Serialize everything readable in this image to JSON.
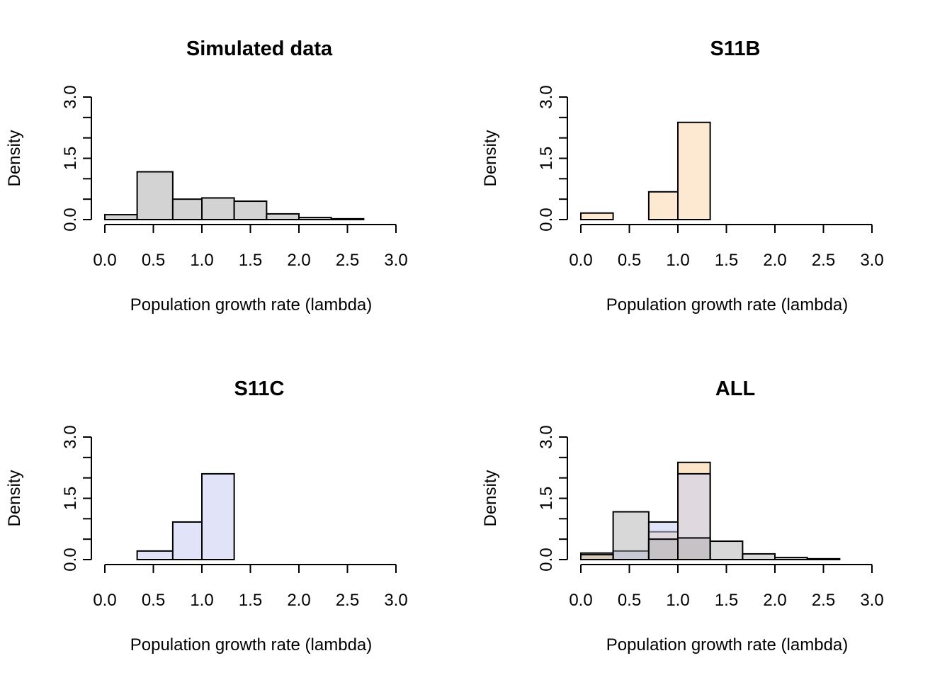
{
  "chart_data": [
    {
      "type": "bar",
      "title": "Simulated data",
      "xlabel": "Population growth rate (lambda)",
      "ylabel": "Density",
      "xlim": [
        0,
        3.0
      ],
      "ylim": [
        0,
        3.0
      ],
      "xticks": [
        "0.0",
        "0.5",
        "1.0",
        "1.5",
        "2.0",
        "2.5",
        "3.0"
      ],
      "yticks": [
        "0.0",
        "1.5",
        "3.0"
      ],
      "series": [
        {
          "fill": "#d3d3d3",
          "bins": [
            {
              "x0": 0.0,
              "x1": 0.333,
              "value": 0.12
            },
            {
              "x0": 0.333,
              "x1": 0.7,
              "value": 1.17
            },
            {
              "x0": 0.7,
              "x1": 1.0,
              "value": 0.5
            },
            {
              "x0": 1.0,
              "x1": 1.333,
              "value": 0.53
            },
            {
              "x0": 1.333,
              "x1": 1.667,
              "value": 0.45
            },
            {
              "x0": 1.667,
              "x1": 2.0,
              "value": 0.14
            },
            {
              "x0": 2.0,
              "x1": 2.333,
              "value": 0.05
            },
            {
              "x0": 2.333,
              "x1": 2.667,
              "value": 0.02
            },
            {
              "x0": 2.667,
              "x1": 3.0,
              "value": 0.0
            }
          ]
        }
      ]
    },
    {
      "type": "bar",
      "title": "S11B",
      "xlabel": "Population growth rate (lambda)",
      "ylabel": "Density",
      "xlim": [
        0,
        3.0
      ],
      "ylim": [
        0,
        3.0
      ],
      "xticks": [
        "0.0",
        "0.5",
        "1.0",
        "1.5",
        "2.0",
        "2.5",
        "3.0"
      ],
      "yticks": [
        "0.0",
        "1.5",
        "3.0"
      ],
      "series": [
        {
          "fill": "#fde9d2",
          "bins": [
            {
              "x0": 0.0,
              "x1": 0.333,
              "value": 0.16
            },
            {
              "x0": 0.333,
              "x1": 0.7,
              "value": 0.0
            },
            {
              "x0": 0.7,
              "x1": 1.0,
              "value": 0.68
            },
            {
              "x0": 1.0,
              "x1": 1.333,
              "value": 2.38
            },
            {
              "x0": 1.333,
              "x1": 1.667,
              "value": 0.0
            },
            {
              "x0": 1.667,
              "x1": 2.0,
              "value": 0.0
            },
            {
              "x0": 2.0,
              "x1": 2.333,
              "value": 0.0
            },
            {
              "x0": 2.333,
              "x1": 2.667,
              "value": 0.0
            },
            {
              "x0": 2.667,
              "x1": 3.0,
              "value": 0.0
            }
          ]
        }
      ]
    },
    {
      "type": "bar",
      "title": "S11C",
      "xlabel": "Population growth rate (lambda)",
      "ylabel": "Density",
      "xlim": [
        0,
        3.0
      ],
      "ylim": [
        0,
        3.0
      ],
      "xticks": [
        "0.0",
        "0.5",
        "1.0",
        "1.5",
        "2.0",
        "2.5",
        "3.0"
      ],
      "yticks": [
        "0.0",
        "1.5",
        "3.0"
      ],
      "series": [
        {
          "fill": "#e1e4f8",
          "bins": [
            {
              "x0": 0.0,
              "x1": 0.333,
              "value": 0.0
            },
            {
              "x0": 0.333,
              "x1": 0.7,
              "value": 0.21
            },
            {
              "x0": 0.7,
              "x1": 1.0,
              "value": 0.92
            },
            {
              "x0": 1.0,
              "x1": 1.333,
              "value": 2.1
            },
            {
              "x0": 1.333,
              "x1": 1.667,
              "value": 0.0
            },
            {
              "x0": 1.667,
              "x1": 2.0,
              "value": 0.0
            },
            {
              "x0": 2.0,
              "x1": 2.333,
              "value": 0.0
            },
            {
              "x0": 2.333,
              "x1": 2.667,
              "value": 0.0
            },
            {
              "x0": 2.667,
              "x1": 3.0,
              "value": 0.0
            }
          ]
        }
      ]
    },
    {
      "type": "bar",
      "title": "ALL",
      "xlabel": "Population growth rate (lambda)",
      "ylabel": "Density",
      "xlim": [
        0,
        3.0
      ],
      "ylim": [
        0,
        3.0
      ],
      "xticks": [
        "0.0",
        "0.5",
        "1.0",
        "1.5",
        "2.0",
        "2.5",
        "3.0"
      ],
      "yticks": [
        "0.0",
        "1.5",
        "3.0"
      ],
      "series": [
        {
          "fill": "#f9dbb6",
          "opacity": 0.75,
          "bins": [
            {
              "x0": 0.0,
              "x1": 0.333,
              "value": 0.16
            },
            {
              "x0": 0.333,
              "x1": 0.7,
              "value": 0.0
            },
            {
              "x0": 0.7,
              "x1": 1.0,
              "value": 0.68
            },
            {
              "x0": 1.0,
              "x1": 1.333,
              "value": 2.38
            },
            {
              "x0": 1.333,
              "x1": 1.667,
              "value": 0.0
            },
            {
              "x0": 1.667,
              "x1": 2.0,
              "value": 0.0
            },
            {
              "x0": 2.0,
              "x1": 2.333,
              "value": 0.0
            },
            {
              "x0": 2.333,
              "x1": 2.667,
              "value": 0.0
            },
            {
              "x0": 2.667,
              "x1": 3.0,
              "value": 0.0
            }
          ]
        },
        {
          "fill": "#c9cef2",
          "opacity": 0.55,
          "bins": [
            {
              "x0": 0.0,
              "x1": 0.333,
              "value": 0.0
            },
            {
              "x0": 0.333,
              "x1": 0.7,
              "value": 0.21
            },
            {
              "x0": 0.7,
              "x1": 1.0,
              "value": 0.92
            },
            {
              "x0": 1.0,
              "x1": 1.333,
              "value": 2.1
            },
            {
              "x0": 1.333,
              "x1": 1.667,
              "value": 0.0
            },
            {
              "x0": 1.667,
              "x1": 2.0,
              "value": 0.0
            },
            {
              "x0": 2.0,
              "x1": 2.333,
              "value": 0.0
            },
            {
              "x0": 2.333,
              "x1": 2.667,
              "value": 0.0
            },
            {
              "x0": 2.667,
              "x1": 3.0,
              "value": 0.0
            }
          ]
        },
        {
          "fill": "#a8a8a8",
          "opacity": 0.45,
          "bins": [
            {
              "x0": 0.0,
              "x1": 0.333,
              "value": 0.12
            },
            {
              "x0": 0.333,
              "x1": 0.7,
              "value": 1.17
            },
            {
              "x0": 0.7,
              "x1": 1.0,
              "value": 0.5
            },
            {
              "x0": 1.0,
              "x1": 1.333,
              "value": 0.53
            },
            {
              "x0": 1.333,
              "x1": 1.667,
              "value": 0.45
            },
            {
              "x0": 1.667,
              "x1": 2.0,
              "value": 0.14
            },
            {
              "x0": 2.0,
              "x1": 2.333,
              "value": 0.05
            },
            {
              "x0": 2.333,
              "x1": 2.667,
              "value": 0.02
            },
            {
              "x0": 2.667,
              "x1": 3.0,
              "value": 0.0
            }
          ]
        }
      ]
    }
  ]
}
